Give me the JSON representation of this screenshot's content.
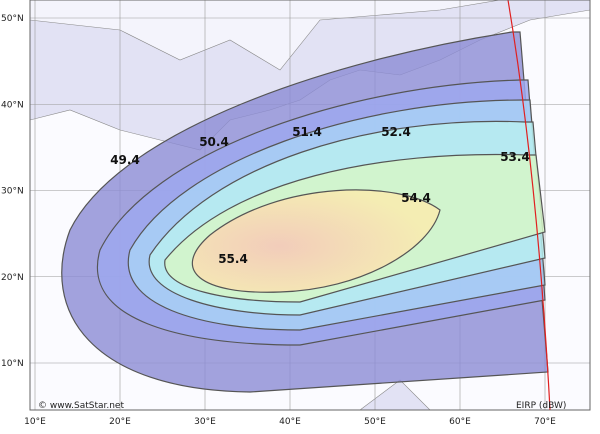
{
  "map": {
    "latitude_labels": [
      "50°N",
      "40°N",
      "30°N",
      "20°N",
      "10°N"
    ],
    "longitude_labels": [
      "10°E",
      "20°E",
      "30°E",
      "40°E",
      "50°E",
      "60°E",
      "70°E"
    ],
    "contours": [
      {
        "label": "49.4"
      },
      {
        "label": "50.4"
      },
      {
        "label": "51.4"
      },
      {
        "label": "52.4"
      },
      {
        "label": "53.4"
      },
      {
        "label": "54.4"
      },
      {
        "label": "55.4"
      }
    ],
    "credit": "© www.SatStar.net",
    "legend": "EIRP (dBW)"
  }
}
